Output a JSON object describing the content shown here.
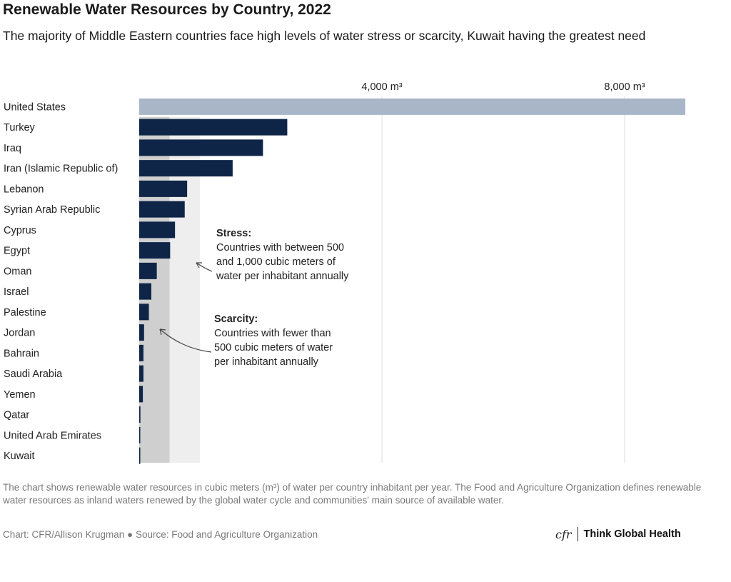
{
  "title": "Renewable Water Resources by Country, 2022",
  "subtitle": "The majority of Middle Eastern countries face high levels of water stress or scarcity, Kuwait having the greatest need",
  "chart_data": {
    "type": "bar",
    "orientation": "horizontal",
    "categories": [
      "United States",
      "Turkey",
      "Iraq",
      "Iran (Islamic Republic of)",
      "Lebanon",
      "Syrian Arab Republic",
      "Cyprus",
      "Egypt",
      "Oman",
      "Israel",
      "Palestine",
      "Jordan",
      "Bahrain",
      "Saudi Arabia",
      "Yemen",
      "Qatar",
      "United Arab Emirates",
      "Kuwait"
    ],
    "values": [
      9000,
      2440,
      2040,
      1540,
      790,
      750,
      590,
      510,
      290,
      200,
      160,
      80,
      70,
      70,
      60,
      20,
      15,
      5
    ],
    "xlim": [
      0,
      9000
    ],
    "ticks": [
      4000,
      8000
    ],
    "tick_labels": [
      "4,000 m³",
      "8,000 m³"
    ],
    "bands": [
      {
        "name": "Scarcity",
        "from": 0,
        "to": 500,
        "color": "#cfcfcf"
      },
      {
        "name": "Stress",
        "from": 500,
        "to": 1000,
        "color": "#eeeeee"
      }
    ],
    "annotations": [
      {
        "heading": "Stress:",
        "lines": [
          "Countries with between 500",
          "and 1,000 cubic meters of",
          "water per inhabitant annually"
        ]
      },
      {
        "heading": "Scarcity:",
        "lines": [
          "Countries with fewer than",
          "500 cubic meters of water",
          "per inhabitant annually"
        ]
      }
    ],
    "colors": {
      "highlight": "#a8b6c8",
      "bar": "#0f2547",
      "grid": "#dddddd"
    }
  },
  "footnote": "The chart shows renewable water resources in cubic meters (m³) of water per country inhabitant per year. The Food and Agriculture Organization defines renewable water resources as inland waters renewed by the global water cycle and communities' main source of available water.",
  "credit": "Chart: CFR/Allison Krugman ● Source: Food and Agriculture Organization",
  "brand": {
    "logo": "cfr",
    "name": "Think Global Health"
  }
}
